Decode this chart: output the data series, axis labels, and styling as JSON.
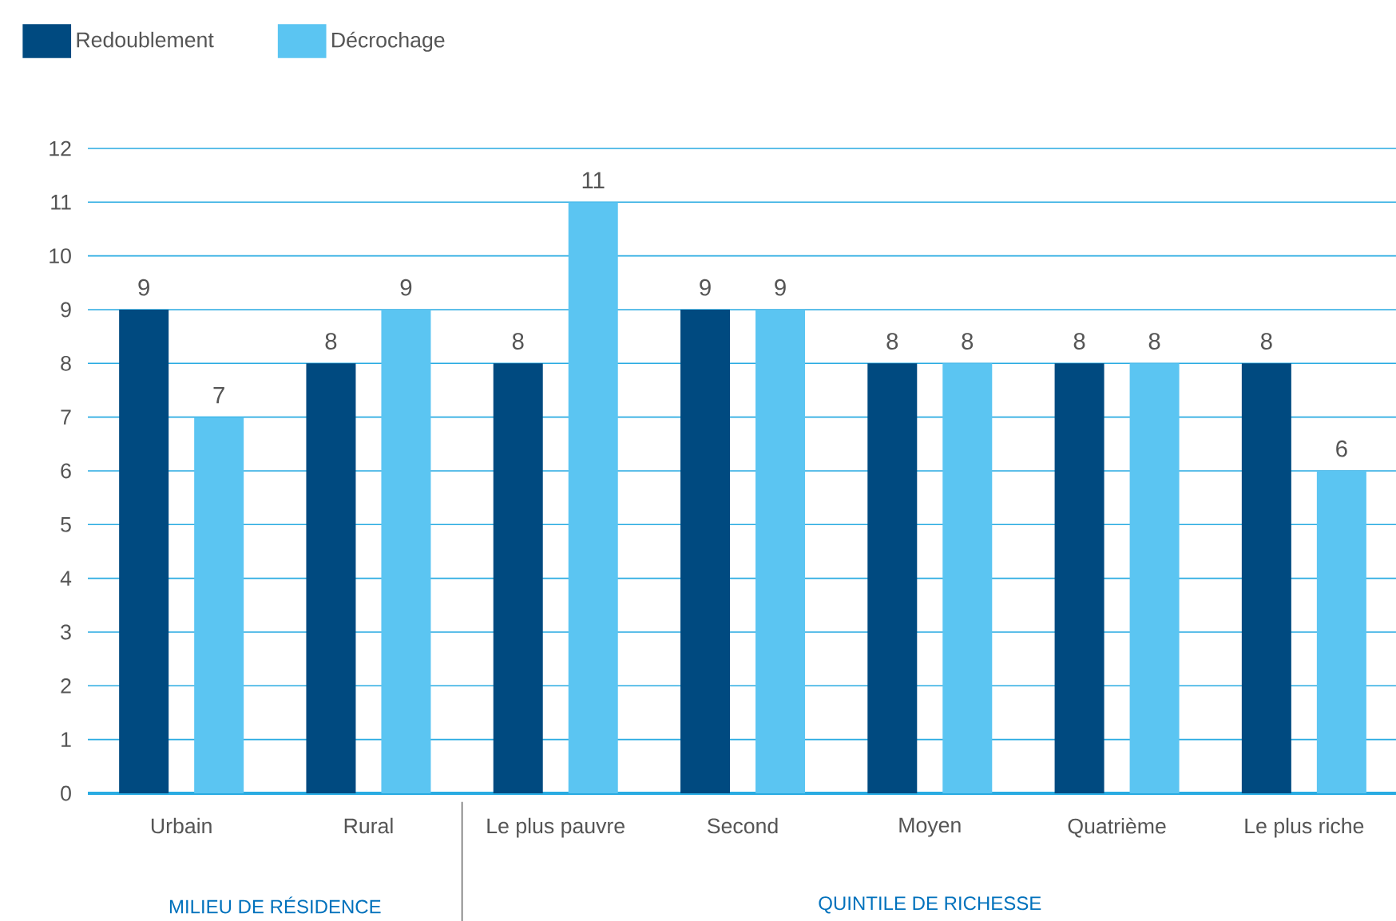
{
  "chart_data": {
    "type": "bar",
    "categories": [
      "Urbain",
      "Rural",
      "Le plus pauvre",
      "Second",
      "Moyen",
      "Quatrième",
      "Le plus riche"
    ],
    "series": [
      {
        "name": "Redoublement",
        "color": "#004a80",
        "values": [
          9,
          8,
          8,
          9,
          8,
          8,
          8
        ]
      },
      {
        "name": "Décrochage",
        "color": "#5bc5f2",
        "values": [
          7,
          9,
          11,
          9,
          8,
          8,
          6
        ]
      }
    ],
    "ylim": [
      0,
      12
    ],
    "yticks": [
      0,
      1,
      2,
      3,
      4,
      5,
      6,
      7,
      8,
      9,
      10,
      11,
      12
    ],
    "grid": "y",
    "legend": "top left",
    "data_labels": true,
    "annotations": [
      "MILIEU DE RÉSIDENCE",
      "QUINTILE DE RICHESSE"
    ]
  }
}
